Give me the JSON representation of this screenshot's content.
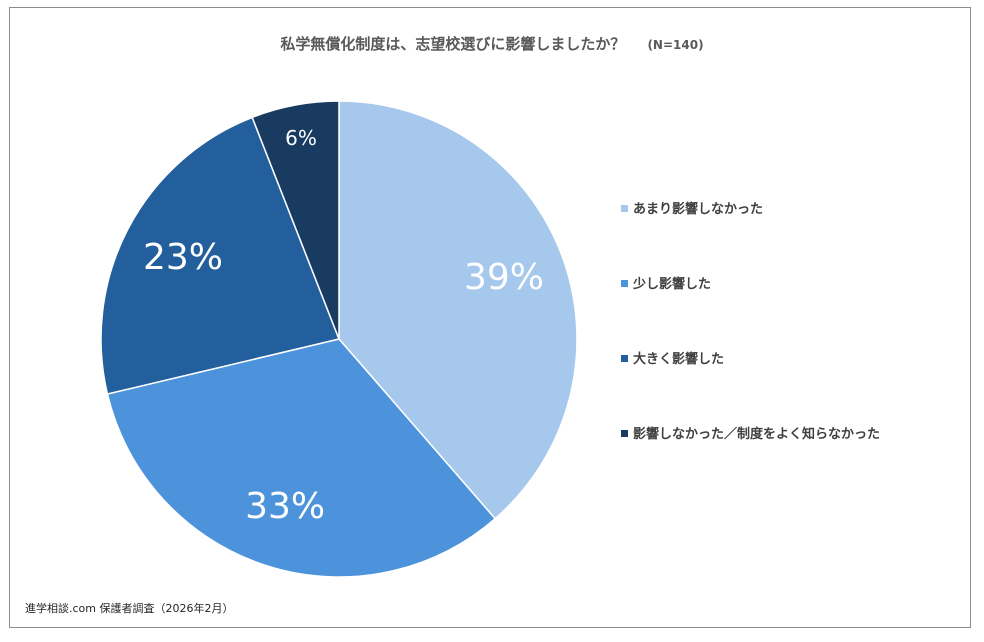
{
  "chart_data": {
    "type": "pie",
    "title": "私学無償化制度は、志望校選びに影響しましたか？",
    "subtitle": "(N=140)",
    "slices": [
      {
        "name": "あまり影響しなかった",
        "value": 39,
        "label": "39%",
        "color": "#a6c8ec"
      },
      {
        "name": "少し影響した",
        "value": 33,
        "label": "33%",
        "color": "#4d93db"
      },
      {
        "name": "大きく影響した",
        "value": 23,
        "label": "23%",
        "color": "#235f9c"
      },
      {
        "name": "影響しなかった／制度をよく知らなかった",
        "value": 6,
        "label": "6%",
        "color": "#193b62"
      }
    ],
    "legend_position": "right"
  },
  "source": "進学相談.com 保護者調査（2026年2月）"
}
